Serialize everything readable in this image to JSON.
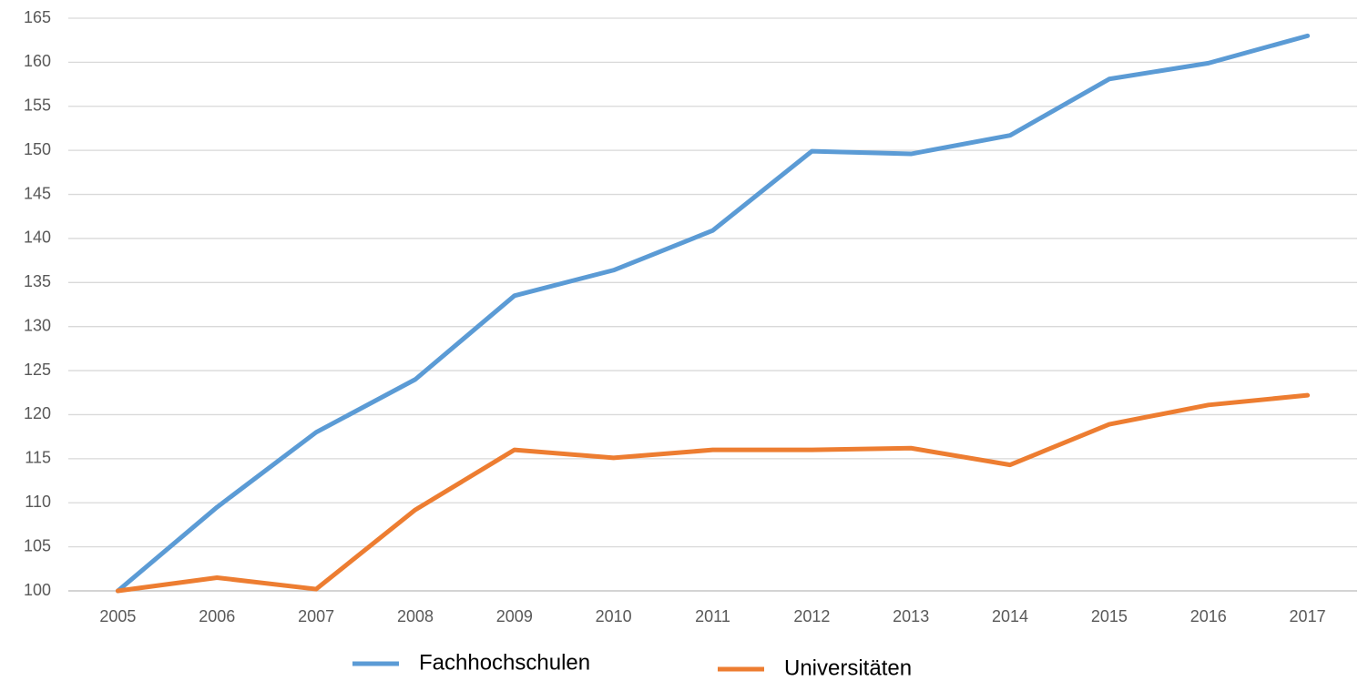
{
  "chart_data": {
    "type": "line",
    "categories": [
      "2005",
      "2006",
      "2007",
      "2008",
      "2009",
      "2010",
      "2011",
      "2012",
      "2013",
      "2014",
      "2015",
      "2016",
      "2017"
    ],
    "series": [
      {
        "name": "Fachhochschulen",
        "color": "#5b9bd5",
        "values": [
          100,
          109.5,
          118,
          124,
          133.5,
          136.4,
          140.9,
          149.9,
          149.6,
          151.7,
          158.1,
          159.9,
          163
        ]
      },
      {
        "name": "Universitäten",
        "color": "#ed7d31",
        "values": [
          100,
          101.5,
          100.2,
          109.2,
          116,
          115.1,
          116,
          116,
          116.2,
          114.3,
          118.9,
          121.1,
          122.2
        ]
      }
    ],
    "ylim": [
      100,
      165
    ],
    "yticks": [
      100,
      105,
      110,
      115,
      120,
      125,
      130,
      135,
      140,
      145,
      150,
      155,
      160,
      165
    ],
    "grid": true,
    "legend": "bottom"
  }
}
